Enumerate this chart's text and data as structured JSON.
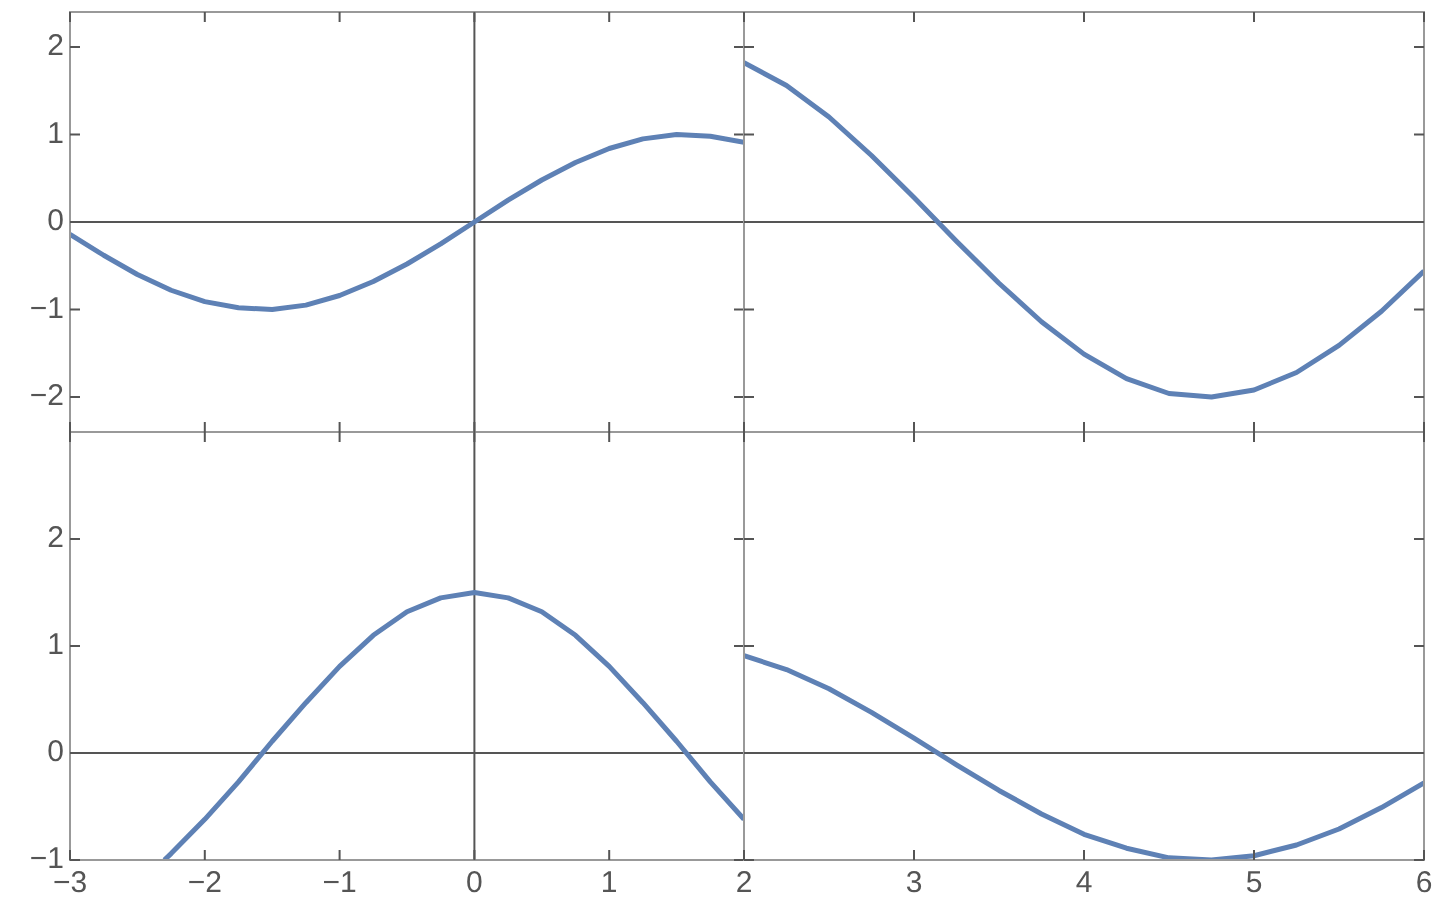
{
  "chart_data": [
    {
      "type": "line",
      "marker": "none",
      "tick_labels": "y",
      "xlim": [
        -3,
        2
      ],
      "xticks": [
        -3,
        -2,
        -1,
        0,
        1,
        2
      ],
      "ylim": [
        -2.4,
        2.4
      ],
      "yticks": [
        -2,
        -1,
        0,
        1,
        2
      ],
      "ref_lines": [
        {
          "axis": "y",
          "value": 0,
          "color": "#555555"
        },
        {
          "axis": "x",
          "value": 0,
          "color": "#555555"
        }
      ],
      "x": [
        -3,
        -2.75,
        -2.5,
        -2.25,
        -2,
        -1.75,
        -1.5,
        -1.25,
        -1,
        -0.75,
        -0.5,
        -0.25,
        0,
        0.25,
        0.5,
        0.75,
        1,
        1.25,
        1.5,
        1.75,
        2
      ],
      "series": [
        {
          "color": "#5e81b5",
          "values": [
            -0.14,
            -0.38,
            -0.6,
            -0.78,
            -0.91,
            -0.98,
            -1,
            -0.95,
            -0.84,
            -0.68,
            -0.48,
            -0.25,
            0,
            0.25,
            0.48,
            0.68,
            0.84,
            0.95,
            1,
            0.98,
            0.91
          ]
        }
      ]
    },
    {
      "type": "line",
      "marker": "none",
      "tick_labels": false,
      "xlim": [
        2,
        6
      ],
      "xticks": [
        2,
        3,
        4,
        5,
        6
      ],
      "ylim": [
        -2.4,
        2.4
      ],
      "yticks": [
        -2,
        -1,
        0,
        1,
        2
      ],
      "ref_lines": [
        {
          "axis": "y",
          "value": 0,
          "color": "#555555"
        }
      ],
      "x": [
        2,
        2.25,
        2.5,
        2.75,
        3,
        3.25,
        3.5,
        3.75,
        4,
        4.25,
        4.5,
        4.75,
        5,
        5.25,
        5.5,
        5.75,
        6
      ],
      "series": [
        {
          "color": "#5e81b5",
          "values": [
            1.82,
            1.56,
            1.2,
            0.76,
            0.28,
            -0.22,
            -0.7,
            -1.14,
            -1.51,
            -1.79,
            -1.96,
            -2,
            -1.92,
            -1.72,
            -1.41,
            -1.02,
            -0.56
          ]
        }
      ]
    },
    {
      "type": "line",
      "marker": "none",
      "xlim": [
        -3,
        2
      ],
      "xticks": [
        -3,
        -2,
        -1,
        0,
        1,
        2
      ],
      "ylim": [
        -1,
        3
      ],
      "yticks": [
        -1,
        0,
        1,
        2
      ],
      "ref_lines": [
        {
          "axis": "y",
          "value": 0,
          "color": "#555555"
        },
        {
          "axis": "x",
          "value": 0,
          "color": "#555555"
        }
      ],
      "x": [
        -2.3,
        -2.25,
        -2,
        -1.75,
        -1.5,
        -1.25,
        -1,
        -0.75,
        -0.5,
        -0.25,
        0,
        0.25,
        0.5,
        0.75,
        1,
        1.25,
        1.5,
        1.75,
        2
      ],
      "series": [
        {
          "color": "#5e81b5",
          "values": [
            -1,
            -0.94,
            -0.62,
            -0.27,
            0.11,
            0.47,
            0.81,
            1.1,
            1.32,
            1.45,
            1.5,
            1.45,
            1.32,
            1.1,
            0.81,
            0.47,
            0.11,
            -0.27,
            -0.62
          ]
        }
      ]
    },
    {
      "type": "line",
      "marker": "none",
      "tick_labels": "x",
      "xlim": [
        2,
        6
      ],
      "xticks": [
        {
          "value": 2,
          "label": null
        },
        3,
        4,
        5,
        6
      ],
      "ylim": [
        -1,
        3
      ],
      "yticks": [
        -1,
        0,
        1,
        2
      ],
      "ref_lines": [
        {
          "axis": "y",
          "value": 0,
          "color": "#555555"
        }
      ],
      "x": [
        2,
        2.25,
        2.5,
        2.75,
        3,
        3.25,
        3.5,
        3.75,
        4,
        4.25,
        4.5,
        4.75,
        5,
        5.25,
        5.5,
        5.75,
        6
      ],
      "series": [
        {
          "color": "#5e81b5",
          "values": [
            0.91,
            0.78,
            0.6,
            0.38,
            0.14,
            -0.11,
            -0.35,
            -0.57,
            -0.76,
            -0.89,
            -0.98,
            -1,
            -0.96,
            -0.86,
            -0.71,
            -0.51,
            -0.28
          ]
        }
      ]
    }
  ]
}
